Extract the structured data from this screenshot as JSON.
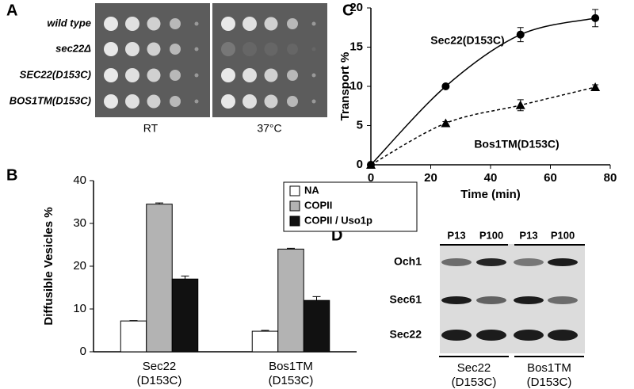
{
  "panel_labels": [
    "A",
    "B",
    "C",
    "D"
  ],
  "panel_a": {
    "strains": [
      "wild type",
      "sec22Δ",
      "SEC22(D153C)",
      "BOS1TM(D153C)"
    ],
    "conditions": [
      "RT",
      "37°C"
    ]
  },
  "panel_d": {
    "lanes": [
      "P13",
      "P100",
      "P13",
      "P100"
    ],
    "proteins": [
      "Och1",
      "Sec61",
      "Sec22"
    ],
    "groups": [
      "Sec22\n(D153C)",
      "Bos1TM\n(D153C)"
    ]
  },
  "chart_data": [
    {
      "type": "bar",
      "y_label": "Diffusible Vesicles %",
      "categories": [
        "Sec22\n(D153C)",
        "Bos1TM\n(D153C)"
      ],
      "series": [
        {
          "name": "NA",
          "color": "#ffffff",
          "values": [
            7.2,
            4.8
          ],
          "errors": [
            0.1,
            0.2
          ]
        },
        {
          "name": "COPII",
          "color": "#b3b3b3",
          "values": [
            34.5,
            24
          ],
          "errors": [
            0.3,
            0.2
          ]
        },
        {
          "name": "COPII / Uso1p",
          "color": "#111111",
          "values": [
            17,
            12
          ],
          "errors": [
            0.7,
            0.9
          ]
        }
      ],
      "ylim": [
        0,
        40
      ],
      "yticks": [
        0,
        10,
        20,
        30,
        40
      ],
      "legend": "top-right"
    },
    {
      "type": "line",
      "x_label": "Time (min)",
      "y_label": "Transport %",
      "x": [
        0,
        25,
        50,
        75
      ],
      "series": [
        {
          "name": "Sec22(D153C)",
          "color": "#000000",
          "dash": "solid",
          "marker": "circle",
          "values": [
            0,
            10,
            16.6,
            18.7
          ],
          "errors": [
            0,
            0.2,
            0.9,
            1.1
          ]
        },
        {
          "name": "Bos1TM(D153C)",
          "color": "#000000",
          "dash": "dashed",
          "marker": "triangle",
          "values": [
            0,
            5.3,
            7.6,
            9.9
          ],
          "errors": [
            0,
            0.2,
            0.7,
            0.3
          ]
        }
      ],
      "xlim": [
        0,
        80
      ],
      "xticks": [
        0,
        20,
        40,
        60,
        80
      ],
      "ylim": [
        0,
        20
      ],
      "yticks": [
        0,
        5,
        10,
        15,
        20
      ]
    }
  ]
}
